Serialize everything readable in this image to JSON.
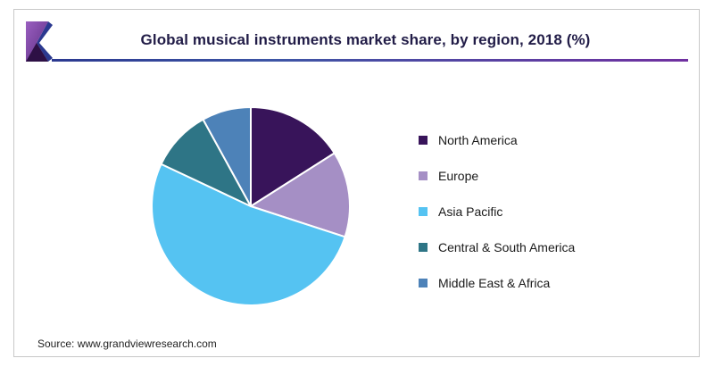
{
  "header": {
    "title": "Global musical instruments market share, by region, 2018 (%)"
  },
  "chart_data": {
    "type": "pie",
    "title": "Global musical instruments market share, by region, 2018 (%)",
    "unit": "%",
    "start_angle_deg": 0,
    "direction": "clockwise",
    "legend_position": "right",
    "data_labels_shown": false,
    "categories": [
      "North America",
      "Europe",
      "Asia Pacific",
      "Central & South America",
      "Middle East & Africa"
    ],
    "values": [
      16,
      14,
      52,
      10,
      8
    ],
    "colors": [
      "#38145a",
      "#a58fc5",
      "#55c3f2",
      "#2e7586",
      "#4d82b8"
    ]
  },
  "source": {
    "label": "Source: www.grandviewresearch.com"
  },
  "colors": {
    "title_text": "#211c47",
    "card_border": "#c8c8c8",
    "rule_start": "#2b3990",
    "rule_end": "#7030a0",
    "slice_separator": "#ffffff",
    "legend_text": "#1a1a1a"
  }
}
